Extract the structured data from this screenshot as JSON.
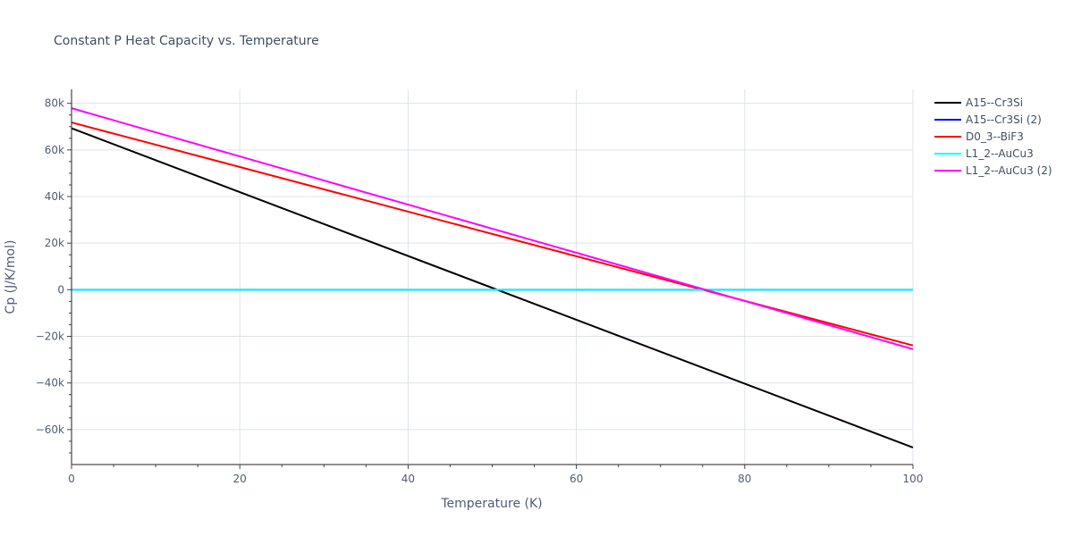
{
  "chart_data": {
    "type": "line",
    "title": "Constant P Heat Capacity vs. Temperature",
    "xlabel": "Temperature (K)",
    "ylabel": "Cp (J/K/mol)",
    "xlim": [
      0,
      100
    ],
    "ylim": [
      -75000,
      86000
    ],
    "x_ticks": [
      0,
      20,
      40,
      60,
      80,
      100
    ],
    "x_tick_labels": [
      "0",
      "20",
      "40",
      "60",
      "80",
      "100"
    ],
    "y_ticks": [
      -60000,
      -40000,
      -20000,
      0,
      20000,
      40000,
      60000,
      80000
    ],
    "y_tick_labels": [
      "−60k",
      "−40k",
      "−20k",
      "0",
      "20k",
      "40k",
      "60k",
      "80k"
    ],
    "grid": true,
    "legend_position": "right",
    "series": [
      {
        "name": "A15--Cr3Si",
        "color": "#000000",
        "x": [
          0,
          100
        ],
        "y": [
          69300,
          -67700
        ]
      },
      {
        "name": "A15--Cr3Si (2)",
        "color": "#0000ff",
        "x": [
          0,
          100
        ],
        "y": [
          0,
          0
        ]
      },
      {
        "name": "D0_3--BiF3",
        "color": "#ff0000",
        "x": [
          0,
          100
        ],
        "y": [
          71800,
          -23900
        ]
      },
      {
        "name": "L1_2--AuCu3",
        "color": "#00ffff",
        "x": [
          0,
          100
        ],
        "y": [
          0,
          0
        ]
      },
      {
        "name": "L1_2--AuCu3 (2)",
        "color": "#ff00ff",
        "x": [
          0,
          100
        ],
        "y": [
          77900,
          -25500
        ]
      }
    ]
  }
}
